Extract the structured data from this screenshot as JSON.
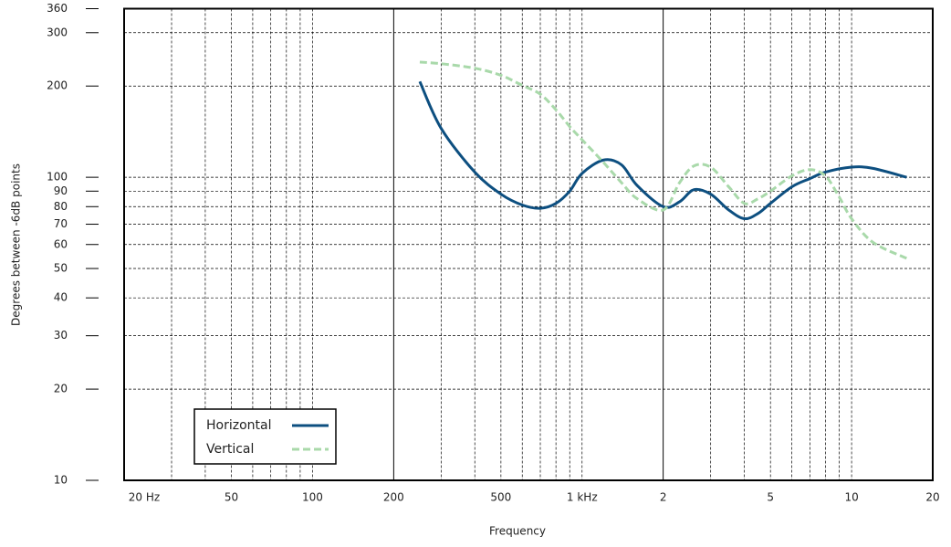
{
  "chart_data": {
    "type": "line",
    "x_label": "Frequency",
    "y_label": "Degrees between -6dB points",
    "log_x": true,
    "log_y": true,
    "grid": true,
    "legend_position": "lower left",
    "xlim": [
      20,
      20000
    ],
    "ylim": [
      10,
      360
    ],
    "xticks": [
      {
        "value": 20,
        "label": "20 Hz"
      },
      50,
      100,
      200,
      500,
      {
        "value": 1000,
        "label": "1 kHz"
      },
      {
        "value": 2000,
        "label": "2"
      },
      {
        "value": 5000,
        "label": "5"
      },
      {
        "value": 10000,
        "label": "10"
      },
      {
        "value": 20000,
        "label": "20"
      }
    ],
    "xminor": [
      30,
      40,
      60,
      70,
      80,
      90,
      300,
      400,
      600,
      700,
      800,
      900,
      3000,
      4000,
      6000,
      7000,
      8000,
      9000
    ],
    "solid_grid_x": [
      200,
      2000
    ],
    "yticks": [
      10,
      20,
      30,
      40,
      50,
      60,
      70,
      80,
      90,
      100,
      200,
      300,
      360
    ],
    "series": [
      {
        "name": "Horizontal",
        "color": "#0d4f80",
        "dashed": false,
        "x": [
          250,
          300,
          400,
          500,
          600,
          700,
          800,
          900,
          1000,
          1200,
          1400,
          1600,
          2000,
          2300,
          2600,
          3000,
          3500,
          4000,
          4500,
          5000,
          6000,
          7000,
          8000,
          10000,
          12000,
          16000
        ],
        "values": [
          207,
          145,
          104,
          88,
          81,
          79,
          82,
          90,
          103,
          114,
          110,
          94,
          80,
          83,
          91,
          88,
          78,
          73,
          76,
          82,
          93,
          99,
          104,
          108,
          107,
          100
        ]
      },
      {
        "name": "Vertical",
        "color": "#a9d9aa",
        "dashed": true,
        "x": [
          250,
          300,
          400,
          500,
          600,
          700,
          800,
          900,
          1000,
          1200,
          1400,
          1600,
          2000,
          2300,
          2600,
          3000,
          3500,
          4000,
          4500,
          5000,
          6000,
          7000,
          8000,
          9000,
          10000,
          12000,
          16000
        ],
        "values": [
          240,
          237,
          229,
          217,
          201,
          188,
          167,
          147,
          133,
          112,
          96,
          85,
          78,
          96,
          109,
          108,
          93,
          82,
          85,
          90,
          101,
          106,
          101,
          86,
          73,
          61,
          54
        ]
      }
    ]
  }
}
